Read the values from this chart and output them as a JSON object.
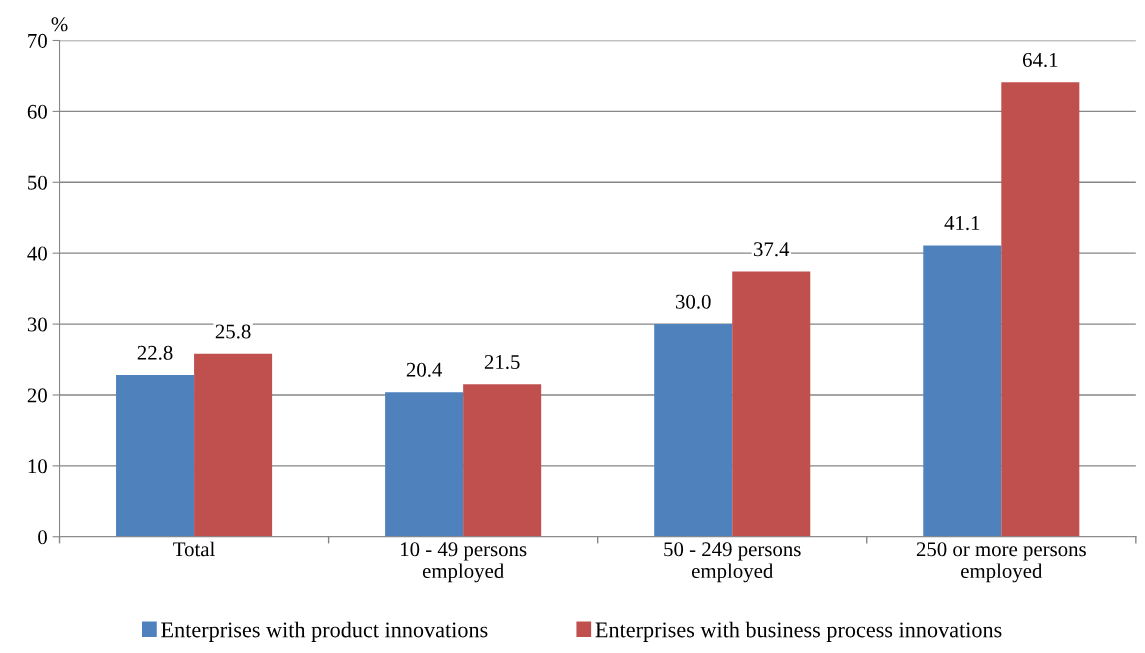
{
  "chart_data": {
    "type": "bar",
    "ylabel": "%",
    "categories": [
      "Total",
      "10 - 49 persons\nemployed",
      "50 - 249 persons\nemployed",
      "250 or more persons\nemployed"
    ],
    "series": [
      {
        "name": "Enterprises with product innovations",
        "color": "#4f81bd",
        "values": [
          22.8,
          20.4,
          30.0,
          41.1
        ]
      },
      {
        "name": "Enterprises with business process innovations",
        "color": "#c0504d",
        "values": [
          25.8,
          21.5,
          37.4,
          64.1
        ]
      }
    ],
    "value_labels": [
      [
        "22.8",
        "20.4",
        "30.0",
        "41.1"
      ],
      [
        "25.8",
        "21.5",
        "37.4",
        "64.1"
      ]
    ],
    "ylim": [
      0,
      70
    ],
    "yticks": [
      0,
      10,
      20,
      30,
      40,
      50,
      60,
      70
    ],
    "grid": "y",
    "legend": "bottom"
  }
}
